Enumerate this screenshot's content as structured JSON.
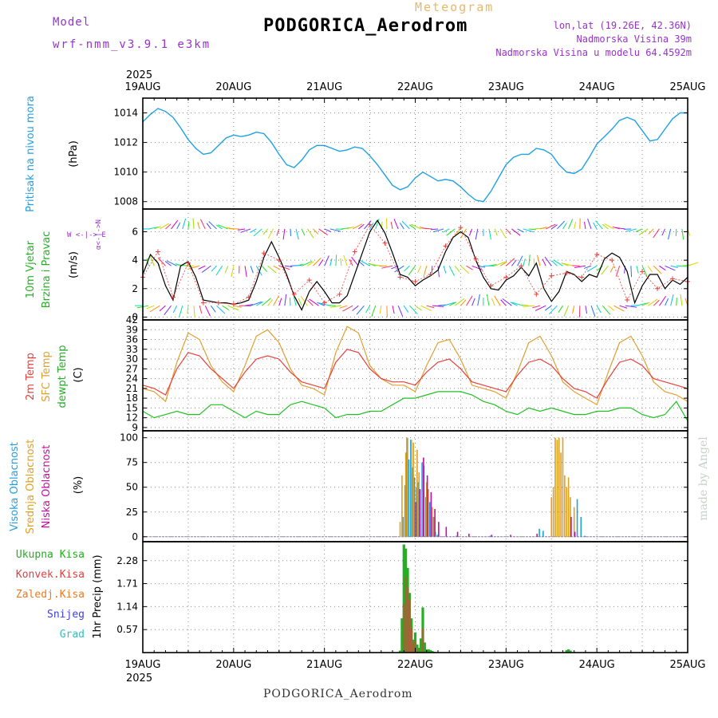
{
  "header": {
    "model_label": "Model",
    "model_name": "wrf-nmm_v3.9.1 e3km",
    "meteogram": "Meteogram",
    "station": "PODGORICA_Aerodrom",
    "lonlat": "lon,lat (19.26E, 42.36N)",
    "elevation": "Nadmorska Visina 39m",
    "elevation_model": "Nadmorska Visina u modelu 64.4592m",
    "year": "2025",
    "credit": "made by Angel"
  },
  "footer": {
    "station": "PODGORICA_Aerodrom"
  },
  "colors": {
    "pressure": "#1ea0e6",
    "speed": "#000000",
    "temp2m": "#e8403c",
    "sfctemp": "#e0a030",
    "dewpt": "#22c022",
    "high": "#20a0e0",
    "mid": "#e0a020",
    "low": "#c010a0",
    "precip_total": "#22b022",
    "precip_conv": "#e04040",
    "freezing": "#f07820",
    "snow": "#4040e0",
    "hail": "#30c0c0",
    "purple": "#9932cc"
  },
  "chart_data": [
    {
      "type": "line",
      "title": "Pritisak na nivou mora",
      "ylabel": "(hPa)",
      "ylim": [
        1007.5,
        1015
      ],
      "yticks": [
        "1008",
        "1010",
        "1012",
        "1014"
      ],
      "x_unit": "hours from 19AUG 00Z",
      "x_labels": [
        "19AUG",
        "20AUG",
        "21AUG",
        "22AUG",
        "23AUG",
        "24AUG",
        "25AUG"
      ],
      "series": [
        {
          "name": "Pressure",
          "x": [
            0,
            2,
            4,
            6,
            8,
            10,
            12,
            14,
            16,
            18,
            20,
            22,
            24,
            26,
            28,
            30,
            32,
            34,
            36,
            38,
            40,
            42,
            44,
            46,
            48,
            50,
            52,
            54,
            56,
            58,
            60,
            62,
            64,
            66,
            68,
            70,
            72,
            74,
            76,
            78,
            80,
            82,
            84,
            86,
            88,
            90,
            92,
            94,
            96,
            98,
            100,
            102,
            104,
            106,
            108,
            110,
            112,
            114,
            116,
            118,
            120,
            122,
            124,
            126,
            128,
            130,
            132,
            134,
            136,
            138,
            140,
            142,
            144
          ],
          "values": [
            1013.4,
            1013.9,
            1014.3,
            1014.1,
            1013.7,
            1013.0,
            1012.2,
            1011.6,
            1011.2,
            1011.3,
            1011.8,
            1012.3,
            1012.5,
            1012.4,
            1012.5,
            1012.7,
            1012.6,
            1012.0,
            1011.2,
            1010.5,
            1010.3,
            1010.8,
            1011.5,
            1011.8,
            1011.8,
            1011.6,
            1011.4,
            1011.5,
            1011.7,
            1011.6,
            1011.1,
            1010.5,
            1009.8,
            1009.1,
            1008.8,
            1009.0,
            1009.6,
            1010.0,
            1009.7,
            1009.4,
            1009.5,
            1009.4,
            1009.0,
            1008.5,
            1008.1,
            1008.0,
            1008.7,
            1009.6,
            1010.5,
            1011.0,
            1011.2,
            1011.2,
            1011.6,
            1011.5,
            1011.2,
            1010.5,
            1010.0,
            1009.9,
            1010.2,
            1011.0,
            1011.9,
            1012.4,
            1012.9,
            1013.5,
            1013.7,
            1013.5,
            1012.8,
            1012.1,
            1012.2,
            1012.9,
            1013.6,
            1014.0,
            1014.0
          ]
        }
      ]
    },
    {
      "type": "line",
      "title": "10m Vjetar Brzina i Pravac",
      "ylabel": "(m/s)",
      "ylim": [
        -0.2,
        7.6
      ],
      "yticks": [
        "0",
        "2",
        "4",
        "6"
      ],
      "compass_label": "W <-|-> E",
      "compass_side": "α<-|->N",
      "series": [
        {
          "name": "Brzina",
          "x": [
            0,
            2,
            4,
            6,
            8,
            10,
            12,
            14,
            16,
            18,
            20,
            22,
            24,
            26,
            28,
            30,
            32,
            34,
            36,
            38,
            40,
            42,
            44,
            46,
            48,
            50,
            52,
            54,
            56,
            58,
            60,
            62,
            64,
            66,
            68,
            70,
            72,
            74,
            76,
            78,
            80,
            82,
            84,
            86,
            88,
            90,
            92,
            94,
            96,
            98,
            100,
            102,
            104,
            106,
            108,
            110,
            112,
            114,
            116,
            118,
            120,
            122,
            124,
            126,
            128,
            130,
            132,
            134,
            136,
            138,
            140,
            142,
            144
          ],
          "values": [
            3.0,
            4.4,
            3.8,
            2.2,
            1.2,
            3.6,
            3.9,
            2.8,
            1.2,
            1.1,
            1.0,
            1.0,
            0.9,
            1.0,
            1.2,
            2.5,
            4.2,
            5.3,
            4.2,
            3.0,
            1.5,
            0.5,
            1.8,
            2.5,
            1.8,
            1.0,
            1.0,
            1.5,
            3.0,
            4.5,
            6.0,
            6.8,
            5.9,
            4.5,
            3.0,
            2.8,
            2.2,
            2.6,
            2.9,
            3.3,
            4.6,
            5.6,
            6.0,
            5.6,
            4.0,
            2.8,
            2.0,
            1.9,
            2.6,
            2.9,
            3.5,
            2.9,
            3.8,
            2.0,
            1.1,
            1.8,
            3.2,
            3.0,
            2.5,
            3.0,
            2.8,
            4.1,
            4.5,
            4.2,
            3.2,
            1.0,
            2.2,
            3.0,
            3.0,
            2.0,
            2.6,
            2.3,
            2.8
          ]
        },
        {
          "name": "Udari",
          "x": [
            0,
            4,
            8,
            12,
            16,
            20,
            24,
            28,
            32,
            36,
            40,
            44,
            48,
            52,
            56,
            60,
            64,
            68,
            72,
            76,
            80,
            84,
            88,
            92,
            96,
            100,
            104,
            108,
            112,
            116,
            120,
            124,
            128,
            132,
            136,
            140,
            144
          ],
          "values": [
            2.8,
            4.6,
            1.4,
            3.8,
            1.0,
            1.0,
            0.9,
            1.4,
            4.5,
            4.0,
            1.6,
            2.6,
            1.0,
            1.6,
            4.6,
            6.5,
            5.2,
            2.8,
            2.5,
            3.0,
            5.0,
            6.3,
            4.1,
            2.2,
            2.8,
            3.6,
            1.6,
            2.9,
            3.1,
            2.8,
            4.4,
            4.0,
            1.2,
            3.2,
            2.0,
            2.7,
            2.5
          ]
        }
      ]
    },
    {
      "type": "line",
      "title": "2m Temp / SFC Temp / dewpt Temp",
      "ylabel": "(C)",
      "ylim": [
        8,
        42
      ],
      "yticks": [
        "9",
        "12",
        "15",
        "18",
        "21",
        "24",
        "27",
        "30",
        "33",
        "36",
        "39",
        "42"
      ],
      "series": [
        {
          "name": "2m Temp",
          "x": [
            0,
            3,
            6,
            9,
            12,
            15,
            18,
            21,
            24,
            27,
            30,
            33,
            36,
            39,
            42,
            45,
            48,
            51,
            54,
            57,
            60,
            63,
            66,
            69,
            72,
            75,
            78,
            81,
            84,
            87,
            90,
            93,
            96,
            99,
            102,
            105,
            108,
            111,
            114,
            117,
            120,
            123,
            126,
            129,
            132,
            135,
            138,
            141,
            144
          ],
          "values": [
            22,
            21,
            19,
            27,
            32,
            31,
            27,
            24,
            21,
            26,
            30,
            31,
            30,
            26,
            23,
            22,
            21,
            29,
            33,
            32,
            27,
            24,
            23,
            23,
            22,
            26,
            29,
            30,
            27,
            23,
            22,
            21,
            20,
            25,
            29,
            30,
            28,
            24,
            21,
            20,
            18,
            24,
            29,
            30,
            28,
            24,
            23,
            22,
            21
          ]
        },
        {
          "name": "SFC Temp",
          "x": [
            0,
            3,
            6,
            9,
            12,
            15,
            18,
            21,
            24,
            27,
            30,
            33,
            36,
            39,
            42,
            45,
            48,
            51,
            54,
            57,
            60,
            63,
            66,
            69,
            72,
            75,
            78,
            81,
            84,
            87,
            90,
            93,
            96,
            99,
            102,
            105,
            108,
            111,
            114,
            117,
            120,
            123,
            126,
            129,
            132,
            135,
            138,
            141,
            144
          ],
          "values": [
            21,
            20,
            17,
            29,
            38,
            36,
            28,
            23,
            20,
            28,
            37,
            39,
            35,
            27,
            22,
            21,
            19,
            32,
            40,
            38,
            28,
            24,
            22,
            22,
            20,
            28,
            35,
            36,
            30,
            22,
            21,
            20,
            18,
            26,
            35,
            37,
            31,
            23,
            20,
            18,
            16,
            26,
            35,
            37,
            31,
            23,
            20,
            19,
            17
          ]
        },
        {
          "name": "dewpt Temp",
          "x": [
            0,
            3,
            6,
            9,
            12,
            15,
            18,
            21,
            24,
            27,
            30,
            33,
            36,
            39,
            42,
            45,
            48,
            51,
            54,
            57,
            60,
            63,
            66,
            69,
            72,
            75,
            78,
            81,
            84,
            87,
            90,
            93,
            96,
            99,
            102,
            105,
            108,
            111,
            114,
            117,
            120,
            123,
            126,
            129,
            132,
            135,
            138,
            141,
            144
          ],
          "values": [
            14,
            12,
            13,
            14,
            13,
            13,
            16,
            16,
            14,
            12,
            14,
            13,
            13,
            16,
            17,
            16,
            15,
            12,
            13,
            13,
            14,
            14,
            16,
            18,
            18,
            19,
            20,
            20,
            20,
            19,
            17,
            16,
            14,
            13,
            15,
            14,
            15,
            14,
            13,
            13,
            14,
            14,
            15,
            15,
            13,
            12,
            13,
            17,
            11
          ]
        }
      ]
    },
    {
      "type": "bar",
      "title": "Visoka / Srednja / Niska Oblacnost",
      "ylabel": "(%)",
      "ylim": [
        -5,
        107
      ],
      "yticks": [
        "0",
        "25",
        "50",
        "75",
        "100"
      ],
      "series": [
        {
          "name": "Visoka Oblacnost",
          "x": [
            69,
            69.5,
            70,
            70.5,
            71,
            71.5,
            72,
            72.5,
            73,
            73.5,
            74,
            74.5,
            75,
            75.5,
            76,
            76.5,
            77,
            77.5,
            78,
            83,
            92,
            105,
            106,
            115,
            116,
            117
          ],
          "values": [
            20,
            52,
            100,
            78,
            98,
            70,
            60,
            50,
            55,
            48,
            75,
            72,
            40,
            48,
            35,
            28,
            20,
            5,
            2,
            1,
            1,
            8,
            6,
            38,
            20,
            1
          ]
        },
        {
          "name": "Srednja Oblacnost",
          "x": [
            68,
            68.5,
            69.5,
            70,
            71,
            71.5,
            72.5,
            73,
            74,
            75,
            75.5,
            76.5,
            77,
            108,
            108.5,
            109,
            109.5,
            110,
            110.5,
            111,
            111.5,
            112,
            112.5,
            113,
            114
          ],
          "values": [
            15,
            62,
            85,
            100,
            98,
            95,
            88,
            65,
            45,
            55,
            48,
            30,
            20,
            40,
            50,
            100,
            98,
            100,
            85,
            100,
            62,
            50,
            60,
            40,
            30
          ]
        },
        {
          "name": "Niska Oblacnost",
          "x": [
            72,
            73,
            74,
            75,
            76,
            77,
            78,
            80,
            83,
            86,
            92,
            97,
            104,
            113,
            114
          ],
          "values": [
            35,
            48,
            80,
            62,
            45,
            28,
            15,
            10,
            5,
            3,
            2,
            2,
            3,
            20,
            5
          ]
        }
      ]
    },
    {
      "type": "bar",
      "title": "1hr Precip",
      "ylabel": "1hr Precip (mm)",
      "ylim": [
        0,
        2.75
      ],
      "yticks": [
        "0.57",
        "1.14",
        "1.71",
        "2.28"
      ],
      "series": [
        {
          "name": "Ukupna Kisa",
          "x": [
            68,
            68.5,
            69,
            69.5,
            70,
            70.5,
            71,
            71.5,
            72,
            72.5,
            73,
            73.5,
            74,
            74.5,
            75,
            75.5,
            76,
            76.5,
            77,
            112,
            112.5,
            113
          ],
          "values": [
            0.05,
            0.85,
            2.68,
            2.58,
            2.1,
            1.48,
            0.85,
            0.32,
            0.5,
            0.2,
            0.12,
            0.35,
            1.12,
            0.25,
            0.08,
            0.08,
            0.06,
            0.04,
            0.02,
            0.06,
            0.08,
            0.05
          ]
        },
        {
          "name": "Konvek.Kisa",
          "x": [
            69,
            69.5,
            70,
            70.5,
            71,
            71.5,
            72,
            72.5,
            74
          ],
          "values": [
            1.2,
            1.9,
            1.6,
            1.3,
            0.6,
            0.25,
            0.3,
            0.1,
            0.6
          ]
        },
        {
          "name": "Zaledj.Kisa",
          "x": [],
          "values": []
        },
        {
          "name": "Snijeg",
          "x": [],
          "values": []
        },
        {
          "name": "Grad",
          "x": [],
          "values": []
        }
      ]
    }
  ],
  "labels": {
    "pressure_title": "Pritisak na nivou mora",
    "pressure_unit": "(hPa)",
    "wind_line1": "10m Vjetar",
    "wind_line2": "Brzina i Pravac",
    "wind_unit": "(m/s)",
    "compass_we": "W <-|-> E",
    "compass_side": "α<-|->N",
    "temp_2m": "2m Temp",
    "temp_sfc": "SFC Temp",
    "temp_dew": "dewpt Temp",
    "temp_unit": "(C)",
    "cloud_high": "Visoka Oblacnost",
    "cloud_mid": "Srednja Oblacnost",
    "cloud_low": "Niska Oblacnost",
    "cloud_unit": "(%)",
    "precip_unit": "1hr Precip (mm)",
    "legend_total": "Ukupna Kisa",
    "legend_conv": "Konvek.Kisa",
    "legend_freez": "Zaledj.Kisa",
    "legend_snow": "Snijeg",
    "legend_hail": "Grad"
  }
}
